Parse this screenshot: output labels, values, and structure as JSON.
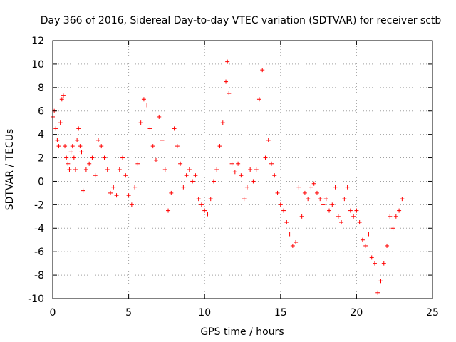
{
  "chart_data": {
    "type": "scatter",
    "title": "Day 366 of 2016, Sidereal Day-to-day VTEC variation (SDTVAR) for receiver sctb",
    "xlabel": "GPS time / hours",
    "ylabel": "SDTVAR / TECUs",
    "xlim": [
      0,
      25
    ],
    "ylim": [
      -10,
      12
    ],
    "xticks": [
      0,
      5,
      10,
      15,
      20,
      25
    ],
    "yticks": [
      -10,
      -8,
      -6,
      -4,
      -2,
      0,
      2,
      4,
      6,
      8,
      10,
      12
    ],
    "xtick_labels": [
      "0",
      "5",
      "10",
      "15",
      "20",
      "25"
    ],
    "ytick_labels": [
      "-10",
      "-8",
      "-6",
      "-4",
      "-2",
      "0",
      "2",
      "4",
      "6",
      "8",
      "10",
      "12"
    ],
    "grid": true,
    "marker": "+",
    "color": "#ff0000",
    "series": [
      {
        "name": "sctb",
        "x": [
          0.0,
          0.1,
          0.2,
          0.3,
          0.4,
          0.5,
          0.6,
          0.7,
          0.8,
          0.9,
          1.0,
          1.1,
          1.2,
          1.3,
          1.4,
          1.5,
          1.6,
          1.7,
          1.8,
          1.9,
          2.0,
          2.2,
          2.4,
          2.6,
          2.8,
          3.0,
          3.2,
          3.4,
          3.6,
          3.8,
          4.0,
          4.2,
          4.4,
          4.6,
          4.8,
          5.0,
          5.2,
          5.4,
          5.6,
          5.8,
          6.0,
          6.2,
          6.4,
          6.6,
          6.8,
          7.0,
          7.2,
          7.4,
          7.6,
          7.8,
          8.0,
          8.2,
          8.4,
          8.6,
          8.8,
          9.0,
          9.2,
          9.4,
          9.6,
          9.8,
          10.0,
          10.2,
          10.4,
          10.6,
          10.8,
          11.0,
          11.2,
          11.4,
          11.5,
          11.6,
          11.8,
          12.0,
          12.2,
          12.4,
          12.6,
          12.8,
          13.0,
          13.2,
          13.4,
          13.6,
          13.8,
          14.0,
          14.2,
          14.4,
          14.6,
          14.8,
          15.0,
          15.2,
          15.4,
          15.6,
          15.8,
          16.0,
          16.2,
          16.4,
          16.6,
          16.8,
          17.0,
          17.2,
          17.4,
          17.6,
          17.8,
          18.0,
          18.2,
          18.4,
          18.6,
          18.8,
          19.0,
          19.2,
          19.4,
          19.6,
          19.8,
          20.0,
          20.2,
          20.4,
          20.6,
          20.8,
          21.0,
          21.2,
          21.4,
          21.6,
          21.8,
          22.0,
          22.2,
          22.4,
          22.6,
          22.8,
          23.0
        ],
        "y": [
          5.5,
          6.0,
          4.5,
          3.5,
          3.0,
          5.0,
          7.0,
          7.3,
          3.0,
          2.0,
          1.5,
          1.0,
          2.5,
          3.0,
          2.0,
          1.0,
          3.5,
          4.5,
          3.0,
          2.5,
          -0.8,
          1.0,
          1.5,
          2.0,
          0.5,
          3.5,
          3.0,
          2.0,
          1.0,
          -1.0,
          -0.5,
          -1.2,
          1.0,
          2.0,
          0.5,
          -1.2,
          -2.0,
          -0.5,
          1.5,
          5.0,
          7.0,
          6.5,
          4.5,
          3.0,
          1.8,
          5.5,
          3.5,
          1.0,
          -2.5,
          -1.0,
          4.5,
          3.0,
          1.5,
          -0.5,
          0.5,
          1.0,
          0.0,
          0.5,
          -1.5,
          -2.0,
          -2.5,
          -2.8,
          -1.5,
          0.0,
          1.0,
          3.0,
          5.0,
          8.5,
          10.2,
          7.5,
          1.5,
          0.8,
          1.5,
          0.5,
          -1.5,
          -0.5,
          1.0,
          0.0,
          1.0,
          7.0,
          9.5,
          2.0,
          3.5,
          1.5,
          0.5,
          -1.0,
          -2.0,
          -2.5,
          -3.5,
          -4.5,
          -5.5,
          -5.2,
          -0.5,
          -3.0,
          -1.0,
          -1.5,
          -0.5,
          -0.2,
          -1.0,
          -1.5,
          -2.0,
          -1.5,
          -2.5,
          -2.0,
          -0.5,
          -3.0,
          -3.5,
          -1.5,
          -0.5,
          -2.5,
          -3.0,
          -2.5,
          -3.5,
          -5.0,
          -5.5,
          -4.5,
          -6.5,
          -7.0,
          -9.5,
          -8.5,
          -7.0,
          -5.5,
          -3.0,
          -4.0,
          -3.0,
          -2.5,
          -1.5
        ]
      }
    ]
  }
}
